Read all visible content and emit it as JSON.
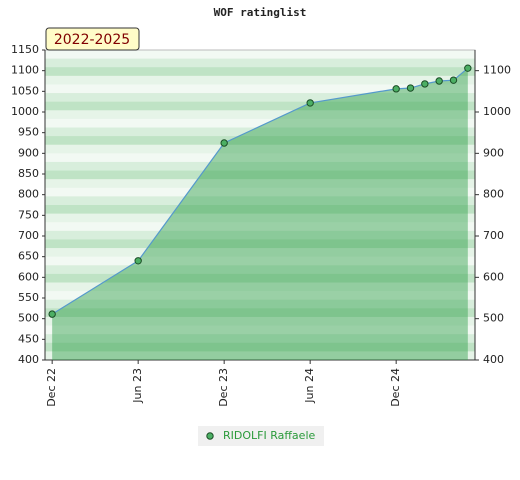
{
  "chart_data": {
    "type": "line",
    "title": "WOF ratinglist",
    "badge": "2022-2025",
    "x": [
      0,
      6,
      12,
      18,
      24,
      25,
      26,
      27,
      28,
      29
    ],
    "series": [
      {
        "name": "RIDOLFI Raffaele",
        "color": "#5599cc",
        "values": [
          511,
          640,
          925,
          1022,
          1056,
          1058,
          1068,
          1075,
          1077,
          1106
        ]
      }
    ],
    "xlim": [
      -0.5,
      29.5
    ],
    "xticks": [
      {
        "value": 0,
        "label": "Dec 22"
      },
      {
        "value": 6,
        "label": "Jun 23"
      },
      {
        "value": 12,
        "label": "Dec 23"
      },
      {
        "value": 18,
        "label": "Jun 24"
      },
      {
        "value": 24,
        "label": "Dec 24"
      }
    ],
    "ylim": [
      400,
      1150
    ],
    "yticks": [
      400,
      450,
      500,
      550,
      600,
      650,
      700,
      750,
      800,
      850,
      900,
      950,
      1000,
      1050,
      1100,
      1150
    ],
    "y2lim": [
      400,
      1150
    ],
    "y2ticks": [
      400,
      500,
      600,
      700,
      800,
      900,
      1000,
      1100
    ]
  }
}
